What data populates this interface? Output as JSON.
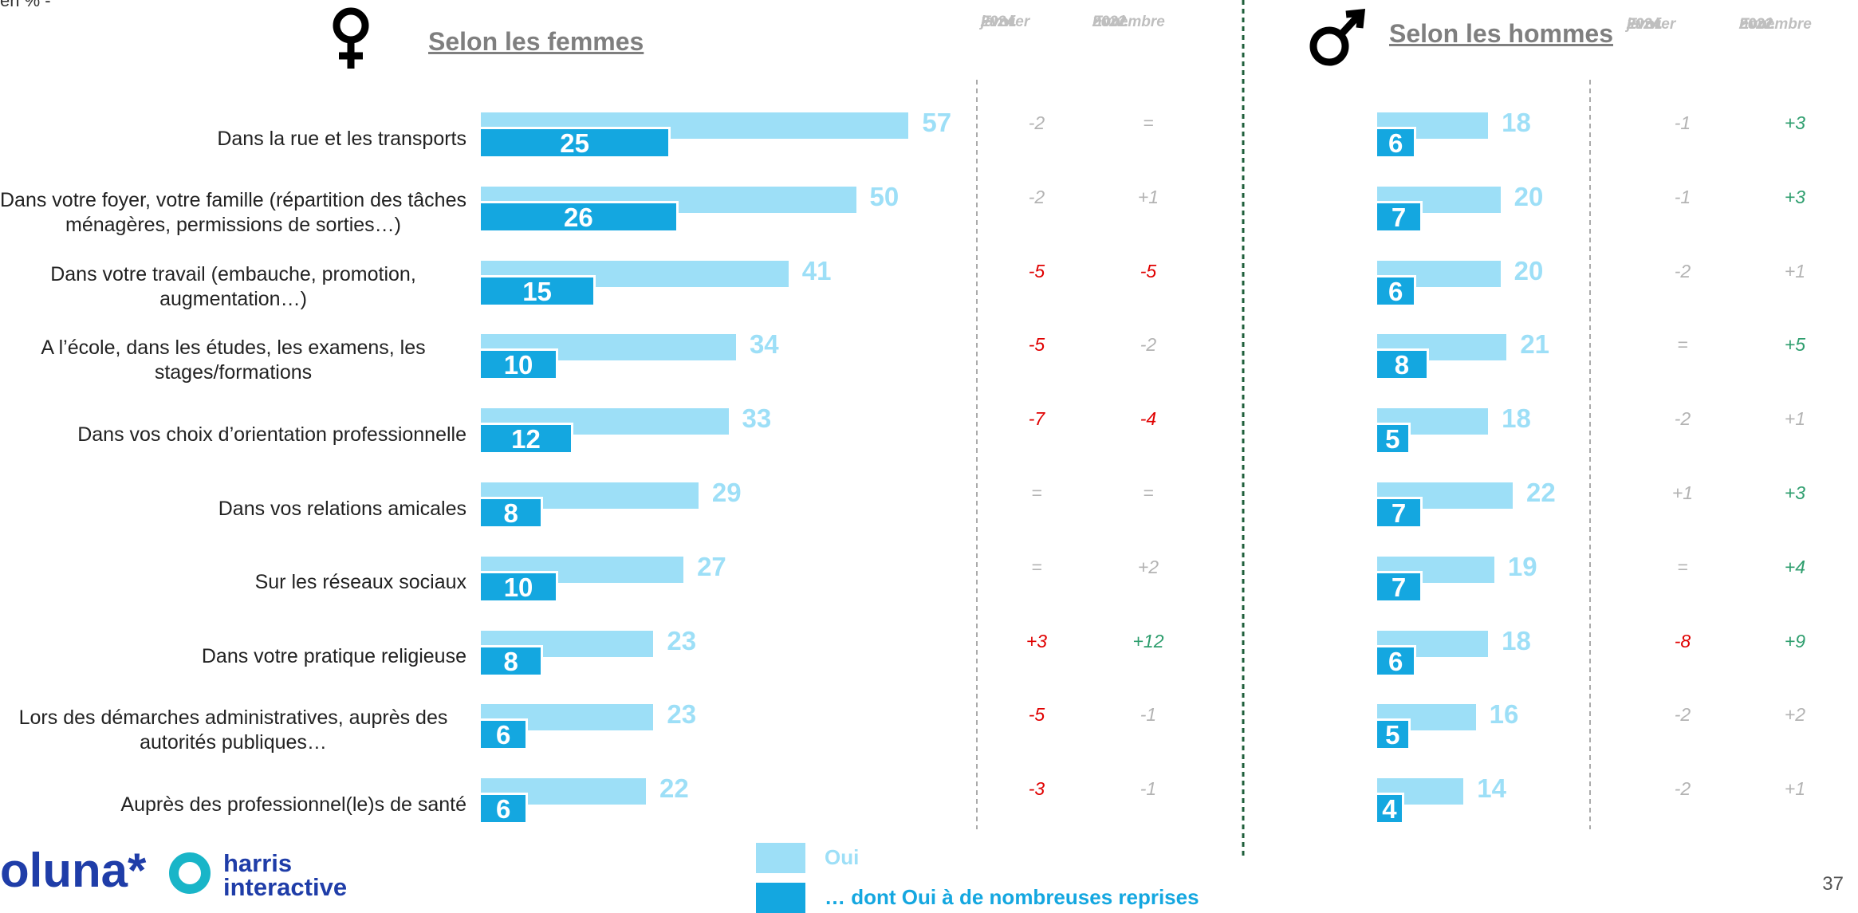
{
  "subtitle": "en % -",
  "page_number": "37",
  "logo": {
    "brand": "oluna*",
    "partner": [
      "harris",
      "interactive"
    ]
  },
  "legend": [
    {
      "name": "Oui",
      "color": "#9ddff7"
    },
    {
      "name": "… dont Oui à de nombreuses reprises",
      "color": "#14a7e0"
    }
  ],
  "chart_data": [
    {
      "type": "bar",
      "orientation": "horizontal",
      "title": "Selon les femmes",
      "categories": [
        "Dans la rue et les transports",
        "Dans votre foyer, votre famille (répartition des tâches ménagères, permissions de sorties…)",
        "Dans votre travail (embauche, promotion, augmentation…)",
        "A l’école, dans les études, les examens, les stages/formations",
        "Dans vos choix d’orientation professionnelle",
        "Dans vos relations amicales",
        "Sur les réseaux sociaux",
        "Dans votre pratique religieuse",
        "Lors des démarches administratives, auprès des autorités publiques…",
        "Auprès des professionnel(le)s de santé"
      ],
      "series": [
        {
          "name": "Oui",
          "color": "#9ddff7",
          "values": [
            57,
            50,
            41,
            34,
            33,
            29,
            27,
            23,
            23,
            22
          ]
        },
        {
          "name": "… dont Oui à de nombreuses reprises",
          "color": "#14a7e0",
          "values": [
            25,
            26,
            15,
            10,
            12,
            8,
            10,
            8,
            6,
            6
          ]
        }
      ],
      "xlim": [
        0,
        100
      ],
      "evol": [
        {
          "header": [
            "Evol.",
            "janvier",
            "2024"
          ],
          "values": [
            "-2",
            "-2",
            "-5",
            "-5",
            "-7",
            "=",
            "=",
            "+3",
            "-5",
            "-3"
          ],
          "colors": [
            "#b3b3b3",
            "#b3b3b3",
            "#e00000",
            "#e00000",
            "#e00000",
            "#b3b3b3",
            "#b3b3b3",
            "#e00000",
            "#e00000",
            "#e00000"
          ]
        },
        {
          "header": [
            "Evol.",
            "novembre",
            "2022"
          ],
          "values": [
            "=",
            "+1",
            "-5",
            "-2",
            "-4",
            "=",
            "+2",
            "+12",
            "-1",
            "-1"
          ],
          "colors": [
            "#b3b3b3",
            "#b3b3b3",
            "#e00000",
            "#b3b3b3",
            "#e00000",
            "#b3b3b3",
            "#b3b3b3",
            "#2e9e6e",
            "#b3b3b3",
            "#b3b3b3"
          ]
        }
      ]
    },
    {
      "type": "bar",
      "orientation": "horizontal",
      "title": "Selon les hommes",
      "series": [
        {
          "name": "Oui",
          "color": "#9ddff7",
          "values": [
            18,
            20,
            20,
            21,
            18,
            22,
            19,
            18,
            16,
            14
          ]
        },
        {
          "name": "… dont Oui à de nombreuses reprises",
          "color": "#14a7e0",
          "values": [
            6,
            7,
            6,
            8,
            5,
            7,
            7,
            6,
            5,
            4
          ]
        }
      ],
      "xlim": [
        0,
        100
      ],
      "evol": [
        {
          "header": [
            "Evol.",
            "janvier",
            "2024"
          ],
          "values": [
            "-1",
            "-1",
            "-2",
            "=",
            "-2",
            "+1",
            "=",
            "-8",
            "-2",
            "-2"
          ],
          "colors": [
            "#b3b3b3",
            "#b3b3b3",
            "#b3b3b3",
            "#b3b3b3",
            "#b3b3b3",
            "#b3b3b3",
            "#b3b3b3",
            "#e00000",
            "#b3b3b3",
            "#b3b3b3"
          ]
        },
        {
          "header": [
            "Evol.",
            "novembre",
            "2022"
          ],
          "values": [
            "+3",
            "+3",
            "+1",
            "+5",
            "+1",
            "+3",
            "+4",
            "+9",
            "+2",
            "+1"
          ],
          "colors": [
            "#2e9e6e",
            "#2e9e6e",
            "#b3b3b3",
            "#2e9e6e",
            "#b3b3b3",
            "#2e9e6e",
            "#2e9e6e",
            "#2e9e6e",
            "#b3b3b3",
            "#b3b3b3"
          ]
        }
      ]
    }
  ]
}
